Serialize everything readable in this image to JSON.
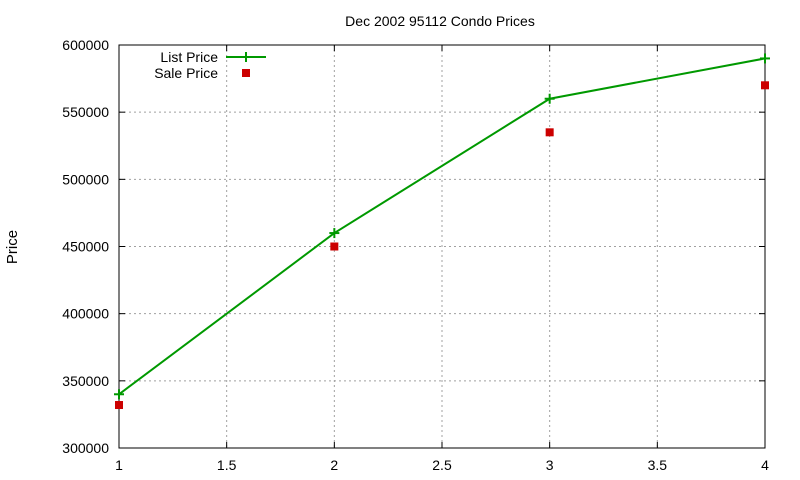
{
  "chart_data": {
    "type": "line",
    "title": "Dec 2002 95112 Condo Prices",
    "xlabel": "",
    "ylabel": "Price",
    "xlim": [
      1,
      4
    ],
    "ylim": [
      300000,
      600000
    ],
    "xticks": [
      "1",
      "1.5",
      "2",
      "2.5",
      "3",
      "3.5",
      "4"
    ],
    "yticks": [
      "300000",
      "350000",
      "400000",
      "450000",
      "500000",
      "550000",
      "600000"
    ],
    "xtick_values": [
      1,
      1.5,
      2,
      2.5,
      3,
      3.5,
      4
    ],
    "ytick_values": [
      300000,
      350000,
      400000,
      450000,
      500000,
      550000,
      600000
    ],
    "grid": true,
    "legend_position": "top-left",
    "series": [
      {
        "name": "List Price",
        "style": "lines+points",
        "marker": "plus",
        "color": "#009900",
        "x": [
          1,
          2,
          3,
          4
        ],
        "y": [
          340000,
          460000,
          560000,
          590000
        ]
      },
      {
        "name": "Sale Price",
        "style": "points",
        "marker": "square",
        "color": "#cc0000",
        "x": [
          1,
          2,
          3,
          4
        ],
        "y": [
          332000,
          450000,
          535000,
          570000
        ]
      }
    ]
  }
}
